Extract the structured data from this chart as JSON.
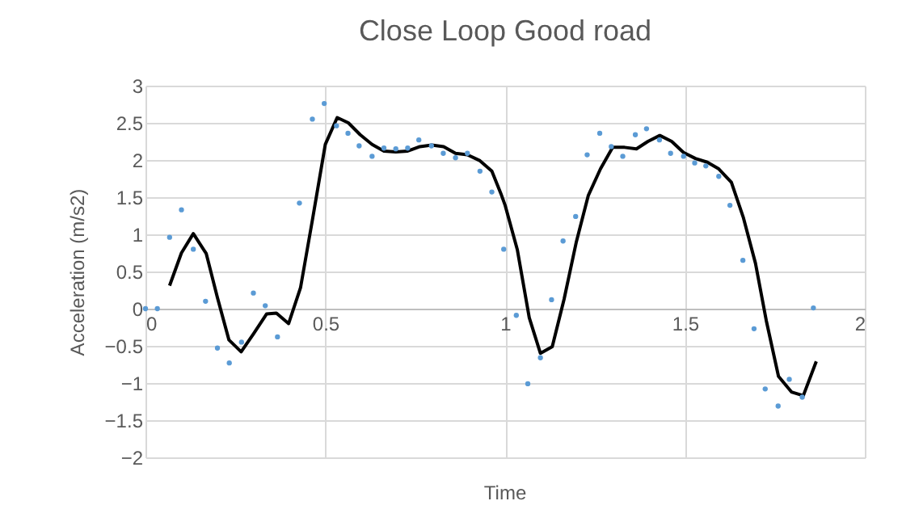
{
  "chart_data": {
    "type": "scatter",
    "title": "Close Loop Good road",
    "xlabel": "Time",
    "ylabel": "Acceleration (m/s2)",
    "xlim": [
      0,
      2
    ],
    "xticks": [
      0,
      0.5,
      1,
      1.5,
      2
    ],
    "ylim": [
      -2,
      3
    ],
    "yticks": [
      -2,
      -1.5,
      -1,
      -0.5,
      0,
      0.5,
      1,
      1.5,
      2,
      2.5,
      3
    ],
    "grid": true,
    "legend": false,
    "series": [
      {
        "marker": "circle",
        "color": "#5b9bd5",
        "x": [
          0,
          0.033,
          0.067,
          0.1,
          0.133,
          0.167,
          0.2,
          0.233,
          0.267,
          0.3,
          0.333,
          0.367,
          0.428,
          0.464,
          0.497,
          0.531,
          0.563,
          0.594,
          0.63,
          0.663,
          0.696,
          0.729,
          0.76,
          0.795,
          0.828,
          0.862,
          0.895,
          0.93,
          0.963,
          0.996,
          1.031,
          1.063,
          1.098,
          1.129,
          1.161,
          1.196,
          1.228,
          1.263,
          1.295,
          1.327,
          1.362,
          1.393,
          1.429,
          1.46,
          1.496,
          1.527,
          1.558,
          1.594,
          1.625,
          1.661,
          1.692,
          1.723,
          1.759,
          1.79,
          1.826,
          1.857
        ],
        "values": [
          0,
          0,
          0.96,
          1.33,
          0.8,
          0.1,
          -0.53,
          -0.73,
          -0.45,
          0.21,
          0.04,
          -0.38,
          1.42,
          2.55,
          2.76,
          2.46,
          2.36,
          2.19,
          2.05,
          2.16,
          2.15,
          2.16,
          2.27,
          2.19,
          2.09,
          2.03,
          2.09,
          1.85,
          1.57,
          0.8,
          -0.09,
          -1.01,
          -0.66,
          0.12,
          0.91,
          1.24,
          2.07,
          2.36,
          2.18,
          2.05,
          2.34,
          2.42,
          2.27,
          2.09,
          2.05,
          1.96,
          1.92,
          1.78,
          1.39,
          0.65,
          -0.27,
          -1.08,
          -1.31,
          -0.95,
          -1.19,
          0.01
        ]
      },
      {
        "type": "line",
        "marker": "none",
        "line_style": "solid",
        "color": "#000000",
        "x": [
          0.067,
          0.1,
          0.133,
          0.169,
          0.2,
          0.232,
          0.266,
          0.3,
          0.337,
          0.364,
          0.398,
          0.431,
          0.464,
          0.5,
          0.533,
          0.564,
          0.597,
          0.63,
          0.663,
          0.696,
          0.729,
          0.763,
          0.796,
          0.829,
          0.862,
          0.895,
          0.93,
          0.963,
          0.988,
          1.0,
          1.034,
          1.067,
          1.098,
          1.131,
          1.164,
          1.198,
          1.231,
          1.265,
          1.299,
          1.332,
          1.365,
          1.397,
          1.43,
          1.463,
          1.496,
          1.529,
          1.562,
          1.594,
          1.629,
          1.662,
          1.696,
          1.726,
          1.76,
          1.796,
          1.829,
          1.865
        ],
        "values": [
          0.31,
          0.75,
          1.01,
          0.74,
          0.15,
          -0.42,
          -0.58,
          -0.34,
          -0.07,
          -0.06,
          -0.2,
          0.28,
          1.19,
          2.21,
          2.57,
          2.5,
          2.34,
          2.21,
          2.12,
          2.11,
          2.12,
          2.18,
          2.2,
          2.18,
          2.09,
          2.07,
          1.99,
          1.85,
          1.55,
          1.39,
          0.79,
          -0.12,
          -0.6,
          -0.51,
          0.13,
          0.9,
          1.52,
          1.88,
          2.17,
          2.17,
          2.15,
          2.25,
          2.33,
          2.25,
          2.1,
          2.02,
          1.97,
          1.88,
          1.7,
          1.23,
          0.61,
          -0.16,
          -0.91,
          -1.12,
          -1.17,
          -0.71
        ]
      }
    ]
  }
}
